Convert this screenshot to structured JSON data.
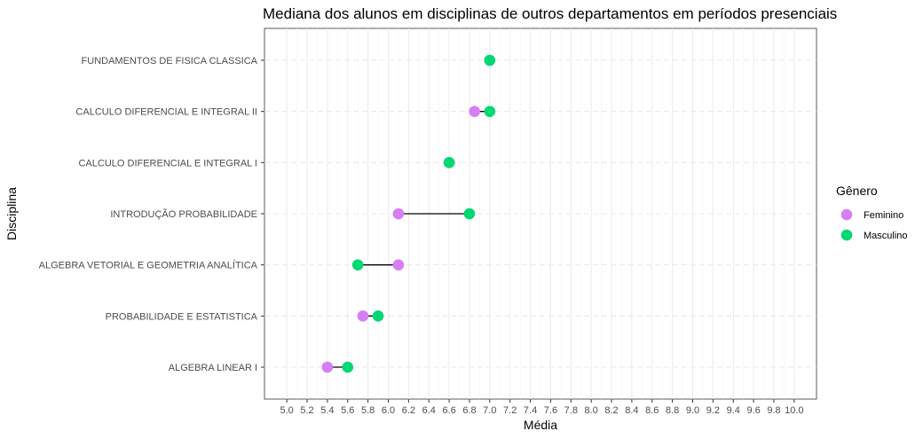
{
  "chart_data": {
    "type": "dumbbell",
    "title": "Mediana dos alunos em disciplinas de outros departamentos em períodos presenciais",
    "xlabel": "Média",
    "ylabel": "Disciplina",
    "xlim": [
      4.78,
      10.22
    ],
    "x_ticks": [
      5.0,
      5.2,
      5.4,
      5.6,
      5.8,
      6.0,
      6.2,
      6.4,
      6.6,
      6.8,
      7.0,
      7.2,
      7.4,
      7.6,
      7.8,
      8.0,
      8.2,
      8.4,
      8.6,
      8.8,
      9.0,
      9.2,
      9.4,
      9.6,
      9.8,
      10.0
    ],
    "x_tick_labels": [
      "5.0",
      "5.2",
      "5.4",
      "5.6",
      "5.8",
      "6.0",
      "6.2",
      "6.4",
      "6.6",
      "6.8",
      "7.0",
      "7.2",
      "7.4",
      "7.6",
      "7.8",
      "8.0",
      "8.2",
      "8.4",
      "8.6",
      "8.8",
      "9.0",
      "9.2",
      "9.4",
      "9.6",
      "9.8",
      "10.0"
    ],
    "grid": true,
    "legend": {
      "title": "Gênero",
      "placement": "right",
      "entries": [
        {
          "name": "Feminino",
          "color": "#d67ff5"
        },
        {
          "name": "Masculino",
          "color": "#00d973"
        }
      ]
    },
    "categories": [
      "FUNDAMENTOS DE FISICA CLASSICA",
      "CALCULO DIFERENCIAL E INTEGRAL II",
      "CALCULO DIFERENCIAL E INTEGRAL I",
      "INTRODUÇÃO  PROBABILIDADE",
      "ALGEBRA VETORIAL E GEOMETRIA ANALÍTICA",
      "PROBABILIDADE E ESTATISTICA",
      "ALGEBRA LINEAR I"
    ],
    "series": [
      {
        "name": "Feminino",
        "color": "#d67ff5",
        "values": [
          7.0,
          6.85,
          6.6,
          6.1,
          6.1,
          5.75,
          5.4
        ]
      },
      {
        "name": "Masculino",
        "color": "#00d973",
        "values": [
          7.0,
          7.0,
          6.6,
          6.8,
          5.7,
          5.9,
          5.6
        ]
      }
    ]
  }
}
